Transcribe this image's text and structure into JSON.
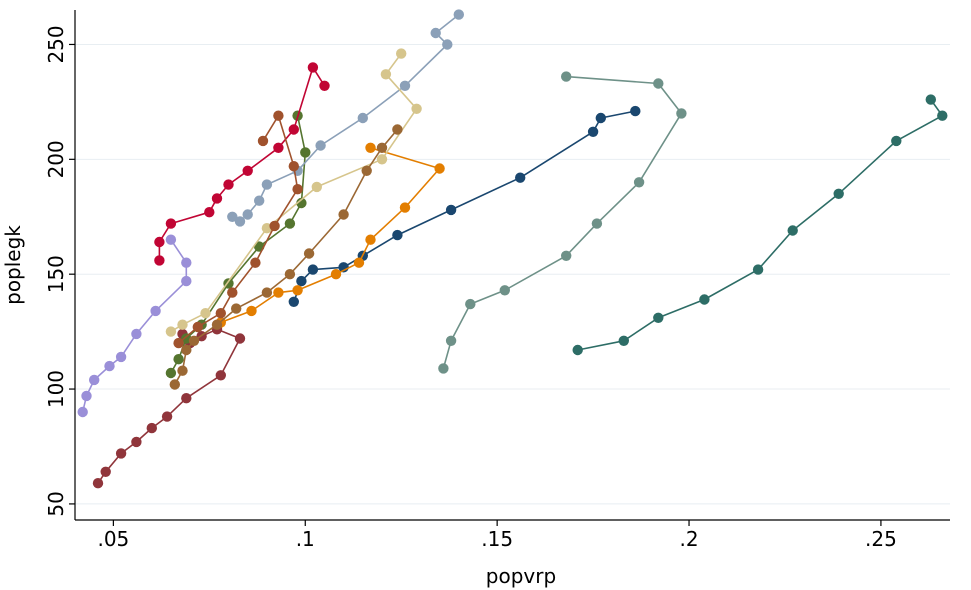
{
  "chart_data": {
    "type": "line",
    "title": "",
    "xlabel": "popvrp",
    "ylabel": "poplegk",
    "xlim": [
      0.04,
      0.268
    ],
    "ylim": [
      43,
      265
    ],
    "xticks": [
      {
        "value": 0.05,
        "label": ".05"
      },
      {
        "value": 0.1,
        "label": ".1"
      },
      {
        "value": 0.15,
        "label": ".15"
      },
      {
        "value": 0.2,
        "label": ".2"
      },
      {
        "value": 0.25,
        "label": ".25"
      }
    ],
    "yticks": [
      {
        "value": 50,
        "label": "50"
      },
      {
        "value": 100,
        "label": "100"
      },
      {
        "value": 150,
        "label": "150"
      },
      {
        "value": 200,
        "label": "200"
      },
      {
        "value": 250,
        "label": "250"
      }
    ],
    "grid": true,
    "legend": "none",
    "series": [
      {
        "name": "navy",
        "color": "#1a476f",
        "points": [
          [
            0.097,
            138
          ],
          [
            0.099,
            147
          ],
          [
            0.102,
            152
          ],
          [
            0.11,
            153
          ],
          [
            0.115,
            158
          ],
          [
            0.124,
            167
          ],
          [
            0.138,
            178
          ],
          [
            0.156,
            192
          ],
          [
            0.175,
            212
          ],
          [
            0.177,
            218
          ],
          [
            0.186,
            221
          ]
        ]
      },
      {
        "name": "maroon",
        "color": "#90353b",
        "points": [
          [
            0.046,
            59
          ],
          [
            0.048,
            64
          ],
          [
            0.052,
            72
          ],
          [
            0.056,
            77
          ],
          [
            0.06,
            83
          ],
          [
            0.064,
            88
          ],
          [
            0.069,
            96
          ],
          [
            0.078,
            106
          ],
          [
            0.083,
            122
          ],
          [
            0.077,
            126
          ],
          [
            0.073,
            123
          ],
          [
            0.07,
            120
          ],
          [
            0.068,
            124
          ]
        ]
      },
      {
        "name": "forest-green",
        "color": "#55752f",
        "points": [
          [
            0.065,
            107
          ],
          [
            0.067,
            113
          ],
          [
            0.069,
            122
          ],
          [
            0.073,
            128
          ],
          [
            0.08,
            146
          ],
          [
            0.088,
            162
          ],
          [
            0.096,
            172
          ],
          [
            0.099,
            181
          ],
          [
            0.1,
            203
          ],
          [
            0.098,
            219
          ]
        ]
      },
      {
        "name": "dark-orange",
        "color": "#e37e00",
        "points": [
          [
            0.078,
            129
          ],
          [
            0.086,
            134
          ],
          [
            0.093,
            142
          ],
          [
            0.098,
            143
          ],
          [
            0.108,
            150
          ],
          [
            0.114,
            155
          ],
          [
            0.117,
            165
          ],
          [
            0.126,
            179
          ],
          [
            0.135,
            196
          ],
          [
            0.117,
            205
          ]
        ]
      },
      {
        "name": "teal-dark",
        "color": "#2d6d66",
        "points": [
          [
            0.171,
            117
          ],
          [
            0.183,
            121
          ],
          [
            0.192,
            131
          ],
          [
            0.204,
            139
          ],
          [
            0.218,
            152
          ],
          [
            0.227,
            169
          ],
          [
            0.239,
            185
          ],
          [
            0.254,
            208
          ],
          [
            0.266,
            219
          ],
          [
            0.263,
            226
          ]
        ]
      },
      {
        "name": "cranberry",
        "color": "#c10534",
        "points": [
          [
            0.062,
            156
          ],
          [
            0.062,
            164
          ],
          [
            0.065,
            172
          ],
          [
            0.075,
            177
          ],
          [
            0.077,
            183
          ],
          [
            0.08,
            189
          ],
          [
            0.085,
            195
          ],
          [
            0.093,
            205
          ],
          [
            0.097,
            213
          ],
          [
            0.102,
            240
          ],
          [
            0.105,
            232
          ]
        ]
      },
      {
        "name": "blue-gray",
        "color": "#8ba0b8",
        "points": [
          [
            0.081,
            175
          ],
          [
            0.083,
            173
          ],
          [
            0.085,
            176
          ],
          [
            0.088,
            182
          ],
          [
            0.09,
            189
          ],
          [
            0.098,
            195
          ],
          [
            0.104,
            206
          ],
          [
            0.115,
            218
          ],
          [
            0.126,
            232
          ],
          [
            0.137,
            250
          ],
          [
            0.134,
            255
          ],
          [
            0.14,
            263
          ]
        ]
      },
      {
        "name": "khaki",
        "color": "#d6c58c",
        "points": [
          [
            0.065,
            125
          ],
          [
            0.068,
            128
          ],
          [
            0.074,
            133
          ],
          [
            0.09,
            170
          ],
          [
            0.103,
            188
          ],
          [
            0.12,
            200
          ],
          [
            0.129,
            222
          ],
          [
            0.121,
            237
          ],
          [
            0.125,
            246
          ]
        ]
      },
      {
        "name": "sienna",
        "color": "#9b6834",
        "points": [
          [
            0.066,
            102
          ],
          [
            0.068,
            108
          ],
          [
            0.069,
            117
          ],
          [
            0.071,
            121
          ],
          [
            0.077,
            128
          ],
          [
            0.082,
            135
          ],
          [
            0.09,
            142
          ],
          [
            0.096,
            150
          ],
          [
            0.101,
            159
          ],
          [
            0.11,
            176
          ],
          [
            0.116,
            195
          ],
          [
            0.12,
            205
          ],
          [
            0.124,
            213
          ]
        ]
      },
      {
        "name": "orchid-brown",
        "color": "#a0522d",
        "points": [
          [
            0.067,
            120
          ],
          [
            0.072,
            127
          ],
          [
            0.078,
            133
          ],
          [
            0.081,
            142
          ],
          [
            0.087,
            155
          ],
          [
            0.092,
            171
          ],
          [
            0.098,
            187
          ],
          [
            0.097,
            197
          ],
          [
            0.093,
            219
          ],
          [
            0.089,
            208
          ]
        ]
      },
      {
        "name": "lavender",
        "color": "#9a8fd8",
        "points": [
          [
            0.042,
            90
          ],
          [
            0.043,
            97
          ],
          [
            0.045,
            104
          ],
          [
            0.049,
            110
          ],
          [
            0.052,
            114
          ],
          [
            0.056,
            124
          ],
          [
            0.061,
            134
          ],
          [
            0.069,
            147
          ],
          [
            0.069,
            155
          ],
          [
            0.065,
            165
          ]
        ]
      },
      {
        "name": "sea-green",
        "color": "#6e9188",
        "points": [
          [
            0.136,
            109
          ],
          [
            0.138,
            121
          ],
          [
            0.143,
            137
          ],
          [
            0.152,
            143
          ],
          [
            0.168,
            158
          ],
          [
            0.176,
            172
          ],
          [
            0.187,
            190
          ],
          [
            0.198,
            220
          ],
          [
            0.192,
            233
          ],
          [
            0.168,
            236
          ]
        ]
      }
    ]
  }
}
